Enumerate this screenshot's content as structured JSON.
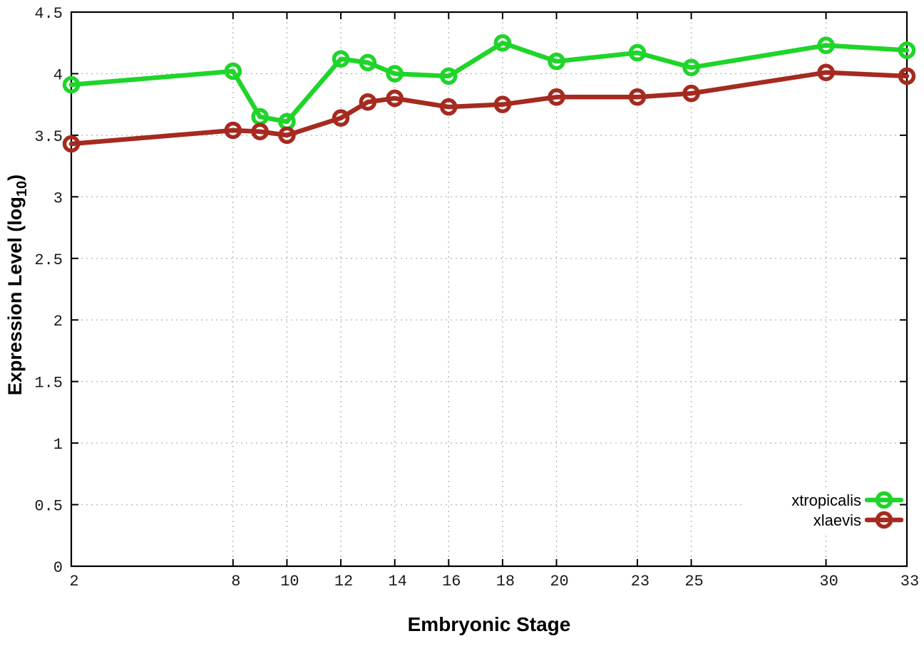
{
  "figure": {
    "background_color": "#ffffff",
    "border_color": "#000000",
    "grid_color": "#b8b8b8"
  },
  "chart_data": {
    "type": "line",
    "title": "",
    "xlabel": "Embryonic Stage",
    "ylabel": {
      "prefix": "Expression Level (log",
      "subscript": "10",
      "suffix": ")"
    },
    "xlim": [
      2,
      33
    ],
    "ylim": [
      0,
      4.5
    ],
    "grid": true,
    "legend_position": "inside-bottom-right",
    "x_ticks": [
      2,
      8,
      10,
      12,
      14,
      16,
      18,
      20,
      23,
      25,
      30,
      33
    ],
    "x_tick_labels": [
      "2",
      "8",
      "10",
      "12",
      "14",
      "16",
      "18",
      "20",
      "23",
      "25",
      "30",
      "33"
    ],
    "y_ticks": [
      0,
      0.5,
      1,
      1.5,
      2,
      2.5,
      3,
      3.5,
      4,
      4.5
    ],
    "y_tick_labels": [
      "0",
      "0.5",
      "1",
      "1.5",
      "2",
      "2.5",
      "3",
      "3.5",
      "4",
      "4.5"
    ],
    "x": [
      2,
      8,
      9,
      10,
      12,
      13,
      14,
      16,
      18,
      20,
      23,
      25,
      30,
      33
    ],
    "series": [
      {
        "name": "xtropicalis",
        "color": "#1fd42a",
        "values": [
          3.91,
          4.02,
          3.65,
          3.61,
          4.12,
          4.09,
          4.0,
          3.98,
          4.25,
          4.1,
          4.17,
          4.05,
          4.23,
          4.19
        ]
      },
      {
        "name": "xlaevis",
        "color": "#a52a20",
        "values": [
          3.43,
          3.54,
          3.53,
          3.5,
          3.64,
          3.77,
          3.8,
          3.73,
          3.75,
          3.81,
          3.81,
          3.84,
          4.01,
          3.98
        ]
      }
    ]
  }
}
